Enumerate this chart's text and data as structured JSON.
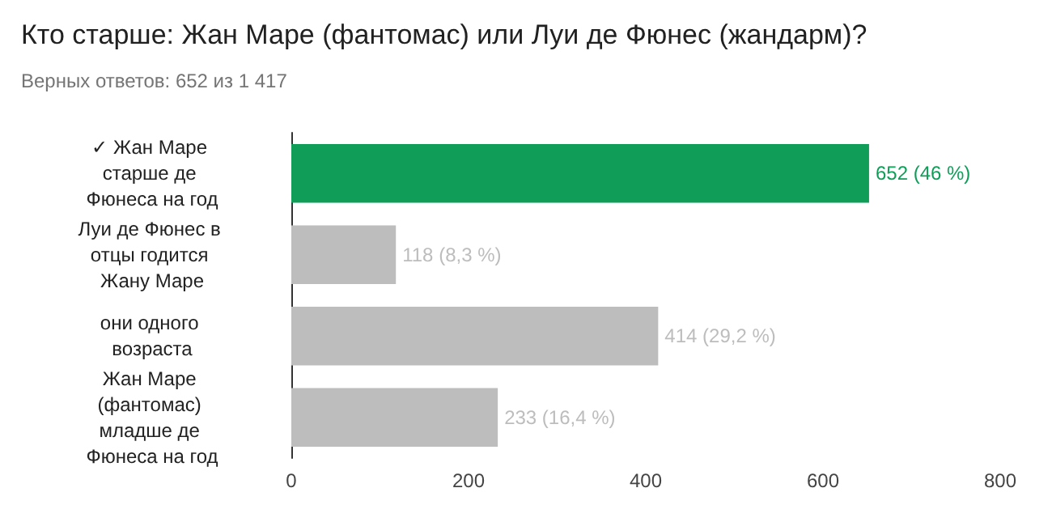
{
  "chart_data": {
    "type": "bar",
    "orientation": "horizontal",
    "title": "Кто старше: Жан Маре (фантомас) или Луи де Фюнес (жандарм)?",
    "subtitle": "Верных ответов: 652 из 1 417",
    "categories": [
      "✓ Жан Маре старше де Фюнеса на год",
      "Луи де Фюнес в отцы годится Жану Маре",
      "они одного возраста",
      "Жан Маре (фантомас) младше де Фюнеса на год"
    ],
    "values": [
      652,
      118,
      414,
      233
    ],
    "colors": [
      "#0f9d58",
      "#bdbdbd",
      "#bdbdbd",
      "#bdbdbd"
    ],
    "value_labels": [
      "652 (46 %)",
      "118 (8,3 %)",
      "414 (29,2 %)",
      "233 (16,4 %)"
    ],
    "xlim": [
      0,
      800
    ],
    "xticks": [
      0,
      200,
      400,
      600,
      800
    ],
    "grid": false
  }
}
